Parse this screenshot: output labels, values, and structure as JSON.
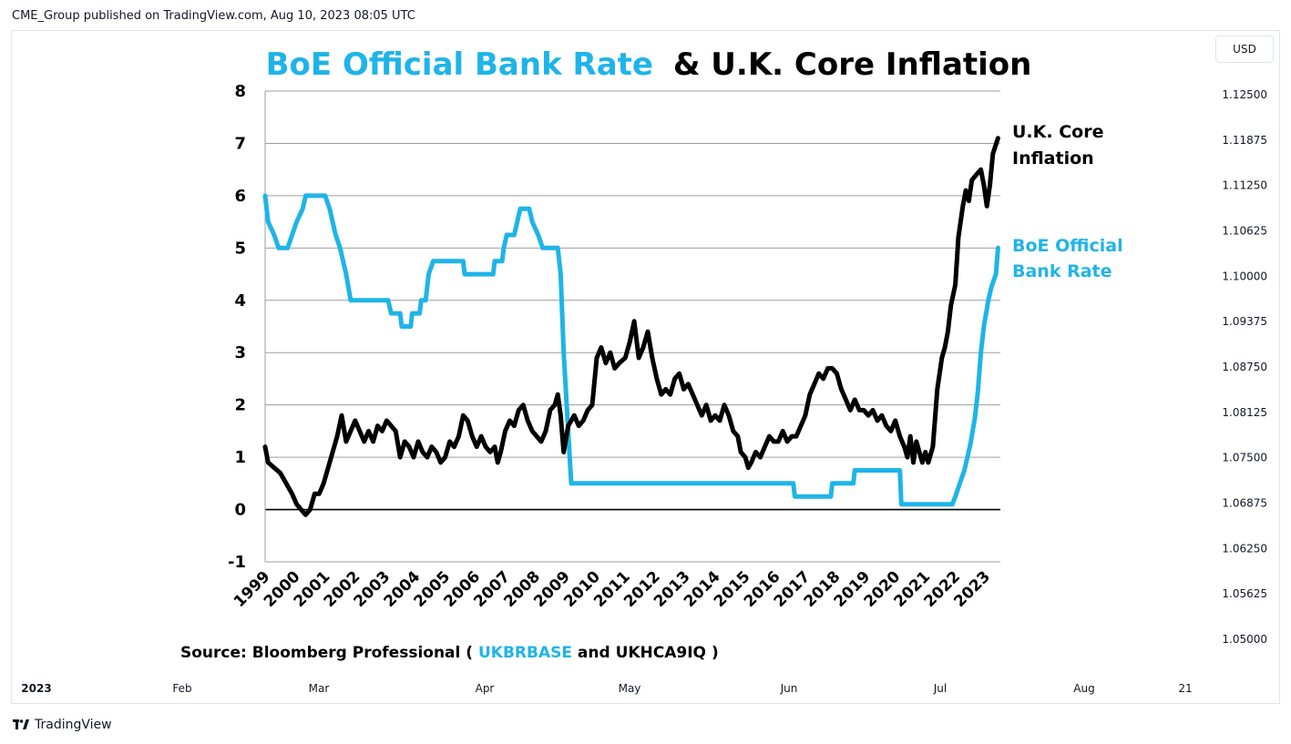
{
  "header": {
    "publish_line": "CME_Group published on TradingView.com, Aug 10, 2023 08:05 UTC",
    "currency": "USD"
  },
  "footer": {
    "brand": "TradingView"
  },
  "colors": {
    "boe": "#1fb4e8",
    "core": "#000000",
    "grid": "#9e9e9e",
    "axis_text": "#131722"
  },
  "chart_data": {
    "type": "line",
    "title_part1": "BoE Official Bank Rate",
    "title_part2": "& U.K. Core Inflation",
    "source_prefix": "Source: Bloomberg Professional (",
    "source_ticker1": "UKBRBASE",
    "source_mid": " and ",
    "source_ticker2": "UKHCA9IQ",
    "source_suffix": ")",
    "xlim": [
      1999.0,
      2023.5
    ],
    "ylim": [
      -1,
      8
    ],
    "y_ticks": [
      "8",
      "7",
      "6",
      "5",
      "4",
      "3",
      "2",
      "1",
      "0",
      "-1"
    ],
    "x_ticks": [
      "1999",
      "2000",
      "2001",
      "2002",
      "2003",
      "2004",
      "2005",
      "2006",
      "2007",
      "2008",
      "2009",
      "2010",
      "2011",
      "2012",
      "2013",
      "2014",
      "2015",
      "2016",
      "2017",
      "2018",
      "2019",
      "2020",
      "2021",
      "2022",
      "2023"
    ],
    "series": [
      {
        "name": "BoE Official Bank Rate",
        "label_line1": "BoE Official",
        "label_line2": "Bank Rate",
        "points": [
          [
            1999.0,
            6.0
          ],
          [
            1999.1,
            5.5
          ],
          [
            1999.3,
            5.25
          ],
          [
            1999.45,
            5.0
          ],
          [
            1999.75,
            5.0
          ],
          [
            1999.9,
            5.25
          ],
          [
            2000.05,
            5.5
          ],
          [
            2000.25,
            5.75
          ],
          [
            2000.35,
            6.0
          ],
          [
            2001.0,
            6.0
          ],
          [
            2001.15,
            5.75
          ],
          [
            2001.35,
            5.25
          ],
          [
            2001.5,
            5.0
          ],
          [
            2001.7,
            4.5
          ],
          [
            2001.85,
            4.0
          ],
          [
            2002.0,
            4.0
          ],
          [
            2003.1,
            4.0
          ],
          [
            2003.2,
            3.75
          ],
          [
            2003.5,
            3.75
          ],
          [
            2003.55,
            3.5
          ],
          [
            2003.85,
            3.5
          ],
          [
            2003.9,
            3.75
          ],
          [
            2004.15,
            3.75
          ],
          [
            2004.2,
            4.0
          ],
          [
            2004.35,
            4.0
          ],
          [
            2004.45,
            4.5
          ],
          [
            2004.6,
            4.75
          ],
          [
            2005.6,
            4.75
          ],
          [
            2005.65,
            4.5
          ],
          [
            2006.6,
            4.5
          ],
          [
            2006.65,
            4.75
          ],
          [
            2006.9,
            4.75
          ],
          [
            2006.95,
            5.0
          ],
          [
            2007.05,
            5.25
          ],
          [
            2007.3,
            5.25
          ],
          [
            2007.4,
            5.5
          ],
          [
            2007.5,
            5.75
          ],
          [
            2007.8,
            5.75
          ],
          [
            2007.9,
            5.5
          ],
          [
            2008.1,
            5.25
          ],
          [
            2008.25,
            5.0
          ],
          [
            2008.75,
            5.0
          ],
          [
            2008.85,
            4.5
          ],
          [
            2008.95,
            3.0
          ],
          [
            2009.05,
            2.0
          ],
          [
            2009.15,
            1.0
          ],
          [
            2009.2,
            0.5
          ],
          [
            2016.6,
            0.5
          ],
          [
            2016.65,
            0.25
          ],
          [
            2017.85,
            0.25
          ],
          [
            2017.9,
            0.5
          ],
          [
            2018.6,
            0.5
          ],
          [
            2018.65,
            0.75
          ],
          [
            2020.15,
            0.75
          ],
          [
            2020.2,
            0.1
          ],
          [
            2021.9,
            0.1
          ],
          [
            2022.0,
            0.25
          ],
          [
            2022.15,
            0.5
          ],
          [
            2022.3,
            0.75
          ],
          [
            2022.4,
            1.0
          ],
          [
            2022.5,
            1.25
          ],
          [
            2022.65,
            1.75
          ],
          [
            2022.75,
            2.25
          ],
          [
            2022.85,
            3.0
          ],
          [
            2022.95,
            3.5
          ],
          [
            2023.1,
            4.0
          ],
          [
            2023.2,
            4.25
          ],
          [
            2023.35,
            4.5
          ],
          [
            2023.42,
            5.0
          ]
        ]
      },
      {
        "name": "U.K. Core Inflation",
        "label_line1": "U.K. Core",
        "label_line2": "Inflation",
        "points": [
          [
            1999.0,
            1.2
          ],
          [
            1999.1,
            0.9
          ],
          [
            1999.3,
            0.8
          ],
          [
            1999.5,
            0.7
          ],
          [
            1999.7,
            0.5
          ],
          [
            1999.9,
            0.3
          ],
          [
            2000.05,
            0.1
          ],
          [
            2000.2,
            0.0
          ],
          [
            2000.35,
            -0.1
          ],
          [
            2000.5,
            0.0
          ],
          [
            2000.65,
            0.3
          ],
          [
            2000.8,
            0.3
          ],
          [
            2000.95,
            0.5
          ],
          [
            2001.1,
            0.8
          ],
          [
            2001.25,
            1.1
          ],
          [
            2001.4,
            1.4
          ],
          [
            2001.55,
            1.8
          ],
          [
            2001.7,
            1.3
          ],
          [
            2001.85,
            1.5
          ],
          [
            2002.0,
            1.7
          ],
          [
            2002.15,
            1.5
          ],
          [
            2002.3,
            1.3
          ],
          [
            2002.45,
            1.5
          ],
          [
            2002.6,
            1.3
          ],
          [
            2002.75,
            1.6
          ],
          [
            2002.9,
            1.5
          ],
          [
            2003.05,
            1.7
          ],
          [
            2003.2,
            1.6
          ],
          [
            2003.35,
            1.5
          ],
          [
            2003.5,
            1.0
          ],
          [
            2003.65,
            1.3
          ],
          [
            2003.8,
            1.2
          ],
          [
            2003.95,
            1.0
          ],
          [
            2004.1,
            1.3
          ],
          [
            2004.25,
            1.1
          ],
          [
            2004.4,
            1.0
          ],
          [
            2004.55,
            1.2
          ],
          [
            2004.7,
            1.1
          ],
          [
            2004.85,
            0.9
          ],
          [
            2005.0,
            1.0
          ],
          [
            2005.15,
            1.3
          ],
          [
            2005.3,
            1.2
          ],
          [
            2005.45,
            1.4
          ],
          [
            2005.6,
            1.8
          ],
          [
            2005.75,
            1.7
          ],
          [
            2005.9,
            1.4
          ],
          [
            2006.05,
            1.2
          ],
          [
            2006.2,
            1.4
          ],
          [
            2006.35,
            1.2
          ],
          [
            2006.5,
            1.1
          ],
          [
            2006.65,
            1.2
          ],
          [
            2006.75,
            0.9
          ],
          [
            2006.85,
            1.1
          ],
          [
            2007.0,
            1.5
          ],
          [
            2007.15,
            1.7
          ],
          [
            2007.3,
            1.6
          ],
          [
            2007.45,
            1.9
          ],
          [
            2007.6,
            2.0
          ],
          [
            2007.75,
            1.7
          ],
          [
            2007.9,
            1.5
          ],
          [
            2008.05,
            1.4
          ],
          [
            2008.2,
            1.3
          ],
          [
            2008.35,
            1.5
          ],
          [
            2008.5,
            1.9
          ],
          [
            2008.65,
            2.0
          ],
          [
            2008.75,
            2.2
          ],
          [
            2008.85,
            1.8
          ],
          [
            2008.95,
            1.1
          ],
          [
            2009.1,
            1.6
          ],
          [
            2009.3,
            1.8
          ],
          [
            2009.45,
            1.6
          ],
          [
            2009.6,
            1.7
          ],
          [
            2009.75,
            1.9
          ],
          [
            2009.9,
            2.0
          ],
          [
            2010.05,
            2.9
          ],
          [
            2010.2,
            3.1
          ],
          [
            2010.35,
            2.8
          ],
          [
            2010.5,
            3.0
          ],
          [
            2010.65,
            2.7
          ],
          [
            2010.8,
            2.8
          ],
          [
            2011.0,
            2.9
          ],
          [
            2011.15,
            3.2
          ],
          [
            2011.3,
            3.6
          ],
          [
            2011.45,
            2.9
          ],
          [
            2011.6,
            3.1
          ],
          [
            2011.75,
            3.4
          ],
          [
            2011.9,
            2.9
          ],
          [
            2012.05,
            2.5
          ],
          [
            2012.2,
            2.2
          ],
          [
            2012.35,
            2.3
          ],
          [
            2012.5,
            2.2
          ],
          [
            2012.65,
            2.5
          ],
          [
            2012.8,
            2.6
          ],
          [
            2012.95,
            2.3
          ],
          [
            2013.1,
            2.4
          ],
          [
            2013.25,
            2.2
          ],
          [
            2013.4,
            2.0
          ],
          [
            2013.55,
            1.8
          ],
          [
            2013.7,
            2.0
          ],
          [
            2013.85,
            1.7
          ],
          [
            2014.0,
            1.8
          ],
          [
            2014.15,
            1.7
          ],
          [
            2014.3,
            2.0
          ],
          [
            2014.45,
            1.8
          ],
          [
            2014.6,
            1.5
          ],
          [
            2014.75,
            1.4
          ],
          [
            2014.85,
            1.1
          ],
          [
            2015.0,
            1.0
          ],
          [
            2015.1,
            0.8
          ],
          [
            2015.2,
            0.9
          ],
          [
            2015.35,
            1.1
          ],
          [
            2015.5,
            1.0
          ],
          [
            2015.65,
            1.2
          ],
          [
            2015.8,
            1.4
          ],
          [
            2015.95,
            1.3
          ],
          [
            2016.1,
            1.3
          ],
          [
            2016.25,
            1.5
          ],
          [
            2016.4,
            1.3
          ],
          [
            2016.55,
            1.4
          ],
          [
            2016.7,
            1.4
          ],
          [
            2016.85,
            1.6
          ],
          [
            2017.0,
            1.8
          ],
          [
            2017.15,
            2.2
          ],
          [
            2017.3,
            2.4
          ],
          [
            2017.45,
            2.6
          ],
          [
            2017.6,
            2.5
          ],
          [
            2017.75,
            2.7
          ],
          [
            2017.9,
            2.7
          ],
          [
            2018.05,
            2.6
          ],
          [
            2018.2,
            2.3
          ],
          [
            2018.35,
            2.1
          ],
          [
            2018.5,
            1.9
          ],
          [
            2018.65,
            2.1
          ],
          [
            2018.8,
            1.9
          ],
          [
            2018.95,
            1.9
          ],
          [
            2019.1,
            1.8
          ],
          [
            2019.25,
            1.9
          ],
          [
            2019.4,
            1.7
          ],
          [
            2019.55,
            1.8
          ],
          [
            2019.7,
            1.6
          ],
          [
            2019.85,
            1.5
          ],
          [
            2020.0,
            1.7
          ],
          [
            2020.15,
            1.4
          ],
          [
            2020.3,
            1.2
          ],
          [
            2020.4,
            1.0
          ],
          [
            2020.5,
            1.4
          ],
          [
            2020.6,
            0.9
          ],
          [
            2020.7,
            1.3
          ],
          [
            2020.8,
            1.1
          ],
          [
            2020.9,
            0.9
          ],
          [
            2021.0,
            1.1
          ],
          [
            2021.1,
            0.9
          ],
          [
            2021.25,
            1.2
          ],
          [
            2021.4,
            2.3
          ],
          [
            2021.55,
            2.9
          ],
          [
            2021.65,
            3.1
          ],
          [
            2021.75,
            3.4
          ],
          [
            2021.85,
            3.9
          ],
          [
            2022.0,
            4.3
          ],
          [
            2022.1,
            5.2
          ],
          [
            2022.25,
            5.8
          ],
          [
            2022.35,
            6.1
          ],
          [
            2022.45,
            5.9
          ],
          [
            2022.55,
            6.3
          ],
          [
            2022.7,
            6.4
          ],
          [
            2022.85,
            6.5
          ],
          [
            2022.95,
            6.2
          ],
          [
            2023.05,
            5.8
          ],
          [
            2023.15,
            6.2
          ],
          [
            2023.25,
            6.8
          ],
          [
            2023.42,
            7.1
          ]
        ]
      }
    ],
    "overlay_axis": {
      "type": "time",
      "x_ticks": [
        "2023",
        "Feb",
        "Mar",
        "Apr",
        "May",
        "Jun",
        "Jul",
        "Aug",
        "21"
      ],
      "y_ticks": [
        "1.12500",
        "1.11875",
        "1.11250",
        "1.10625",
        "1.10000",
        "1.09375",
        "1.08750",
        "1.08125",
        "1.07500",
        "1.06875",
        "1.06250",
        "1.05625",
        "1.05000"
      ],
      "ylim": [
        1.0475,
        1.12875
      ],
      "currency": "USD"
    }
  }
}
